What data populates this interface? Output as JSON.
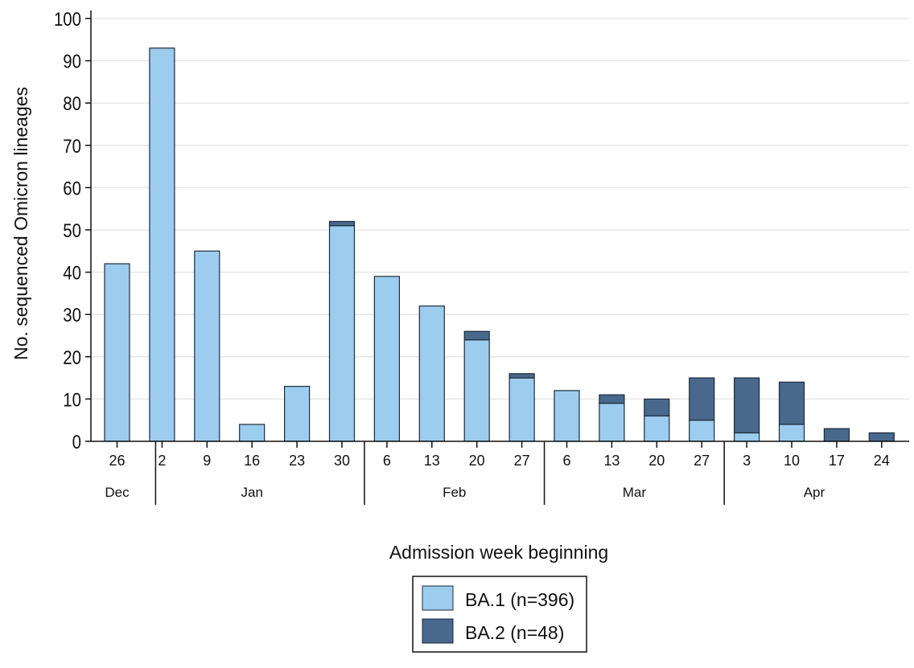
{
  "chart_data": {
    "type": "bar",
    "stacked": true,
    "xlabel": "Admission week beginning",
    "ylabel": "No. sequenced Omicron lineages",
    "ylim": [
      0,
      100
    ],
    "yticks": [
      0,
      10,
      20,
      30,
      40,
      50,
      60,
      70,
      80,
      90,
      100
    ],
    "grid": true,
    "legend_position": "bottom-center",
    "categories": [
      "26",
      "2",
      "9",
      "16",
      "23",
      "30",
      "6",
      "13",
      "20",
      "27",
      "6",
      "13",
      "20",
      "27",
      "3",
      "10",
      "17",
      "24"
    ],
    "months": [
      {
        "label": "Dec",
        "start": 0,
        "end": 0
      },
      {
        "label": "Jan",
        "start": 1,
        "end": 5
      },
      {
        "label": "Feb",
        "start": 6,
        "end": 9
      },
      {
        "label": "Mar",
        "start": 10,
        "end": 13
      },
      {
        "label": "Apr",
        "start": 14,
        "end": 17
      }
    ],
    "series": [
      {
        "name": "BA.1 (n=396)",
        "color": "#9ccdee",
        "values": [
          42,
          93,
          45,
          4,
          13,
          51,
          39,
          32,
          24,
          15,
          12,
          9,
          6,
          5,
          2,
          4,
          0,
          0
        ]
      },
      {
        "name": "BA.2 (n=48)",
        "color": "#48698c",
        "values": [
          0,
          0,
          0,
          0,
          0,
          1,
          0,
          0,
          2,
          1,
          0,
          2,
          4,
          10,
          13,
          10,
          3,
          2
        ]
      }
    ]
  }
}
